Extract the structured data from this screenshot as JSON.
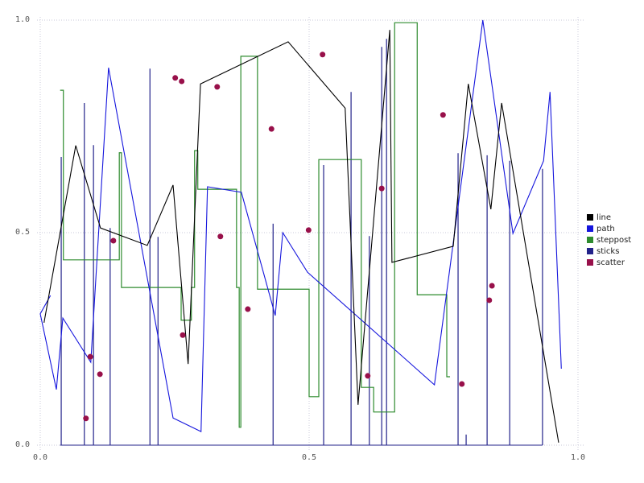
{
  "chart_data": {
    "type": "mixed",
    "title": "",
    "xlabel": "",
    "ylabel": "",
    "xlim": [
      0.0,
      1.0
    ],
    "ylim": [
      0.0,
      1.0
    ],
    "x_tick_labels": [
      "0.0",
      "0.5",
      "1.0"
    ],
    "y_tick_labels": [
      "0.0",
      "0.5",
      "1.0"
    ],
    "x_ticks": [
      0.0,
      0.5,
      1.0
    ],
    "y_ticks": [
      0.0,
      0.5,
      1.0
    ],
    "grid": "dotted",
    "grid_color": "#c9c9da",
    "background": "#ffffff",
    "legend": {
      "position": "right-outside",
      "entries": [
        {
          "label": "line",
          "color": "#000000"
        },
        {
          "label": "path",
          "color": "#1515dd"
        },
        {
          "label": "steppost",
          "color": "#2e8b2e"
        },
        {
          "label": "sticks",
          "color": "#22228a"
        },
        {
          "label": "scatter",
          "color": "#98104a"
        }
      ]
    },
    "series": [
      {
        "name": "line",
        "type": "line",
        "color": "#000000",
        "points": [
          [
            0.007,
            0.288
          ],
          [
            0.066,
            0.705
          ],
          [
            0.112,
            0.511
          ],
          [
            0.199,
            0.47
          ],
          [
            0.247,
            0.612
          ],
          [
            0.275,
            0.191
          ],
          [
            0.298,
            0.85
          ],
          [
            0.461,
            0.949
          ],
          [
            0.567,
            0.793
          ],
          [
            0.591,
            0.095
          ],
          [
            0.65,
            0.977
          ],
          [
            0.654,
            0.43
          ],
          [
            0.768,
            0.468
          ],
          [
            0.796,
            0.85
          ],
          [
            0.838,
            0.555
          ],
          [
            0.858,
            0.805
          ],
          [
            0.964,
            0.006
          ]
        ]
      },
      {
        "name": "path",
        "type": "line",
        "color": "#1515dd",
        "points": [
          [
            0.019,
            0.352
          ],
          [
            0.0,
            0.309
          ],
          [
            0.03,
            0.131
          ],
          [
            0.042,
            0.299
          ],
          [
            0.094,
            0.195
          ],
          [
            0.127,
            0.888
          ],
          [
            0.247,
            0.064
          ],
          [
            0.299,
            0.032
          ],
          [
            0.311,
            0.608
          ],
          [
            0.374,
            0.595
          ],
          [
            0.437,
            0.305
          ],
          [
            0.451,
            0.5
          ],
          [
            0.497,
            0.407
          ],
          [
            0.733,
            0.142
          ],
          [
            0.823,
            1.0
          ],
          [
            0.879,
            0.498
          ],
          [
            0.936,
            0.669
          ],
          [
            0.948,
            0.831
          ],
          [
            0.969,
            0.18
          ]
        ]
      },
      {
        "name": "steppost",
        "type": "step-post",
        "color": "#2e8b2e",
        "points": [
          [
            0.037,
            0.835
          ],
          [
            0.043,
            0.436
          ],
          [
            0.147,
            0.688
          ],
          [
            0.151,
            0.371
          ],
          [
            0.262,
            0.294
          ],
          [
            0.281,
            0.371
          ],
          [
            0.287,
            0.693
          ],
          [
            0.293,
            0.602
          ],
          [
            0.365,
            0.371
          ],
          [
            0.37,
            0.042
          ],
          [
            0.373,
            0.915
          ],
          [
            0.404,
            0.367
          ],
          [
            0.5,
            0.114
          ],
          [
            0.518,
            0.672
          ],
          [
            0.597,
            0.136
          ],
          [
            0.62,
            0.078
          ],
          [
            0.659,
            0.994
          ],
          [
            0.701,
            0.354
          ],
          [
            0.756,
            0.161
          ]
        ]
      },
      {
        "name": "sticks",
        "type": "sticks",
        "color": "#22228a",
        "baseline": 0.0,
        "baseline_span": [
          0.037,
          0.934
        ],
        "points": [
          [
            0.039,
            0.678
          ],
          [
            0.082,
            0.805
          ],
          [
            0.099,
            0.706
          ],
          [
            0.13,
            0.511
          ],
          [
            0.204,
            0.886
          ],
          [
            0.219,
            0.49
          ],
          [
            0.433,
            0.521
          ],
          [
            0.527,
            0.659
          ],
          [
            0.578,
            0.831
          ],
          [
            0.612,
            0.492
          ],
          [
            0.635,
            0.937
          ],
          [
            0.644,
            0.956
          ],
          [
            0.777,
            0.687
          ],
          [
            0.792,
            0.025
          ],
          [
            0.831,
            0.682
          ],
          [
            0.873,
            0.669
          ],
          [
            0.934,
            0.65
          ]
        ]
      },
      {
        "name": "scatter",
        "type": "scatter",
        "color": "#98104a",
        "marker": "circle",
        "marker_radius_px": 3.5,
        "points": [
          [
            0.251,
            0.864
          ],
          [
            0.263,
            0.856
          ],
          [
            0.329,
            0.843
          ],
          [
            0.43,
            0.744
          ],
          [
            0.525,
            0.919
          ],
          [
            0.749,
            0.777
          ],
          [
            0.136,
            0.481
          ],
          [
            0.335,
            0.491
          ],
          [
            0.499,
            0.506
          ],
          [
            0.635,
            0.604
          ],
          [
            0.093,
            0.208
          ],
          [
            0.111,
            0.167
          ],
          [
            0.085,
            0.063
          ],
          [
            0.265,
            0.259
          ],
          [
            0.386,
            0.32
          ],
          [
            0.609,
            0.163
          ],
          [
            0.84,
            0.375
          ],
          [
            0.835,
            0.341
          ],
          [
            0.784,
            0.144
          ]
        ]
      }
    ]
  }
}
